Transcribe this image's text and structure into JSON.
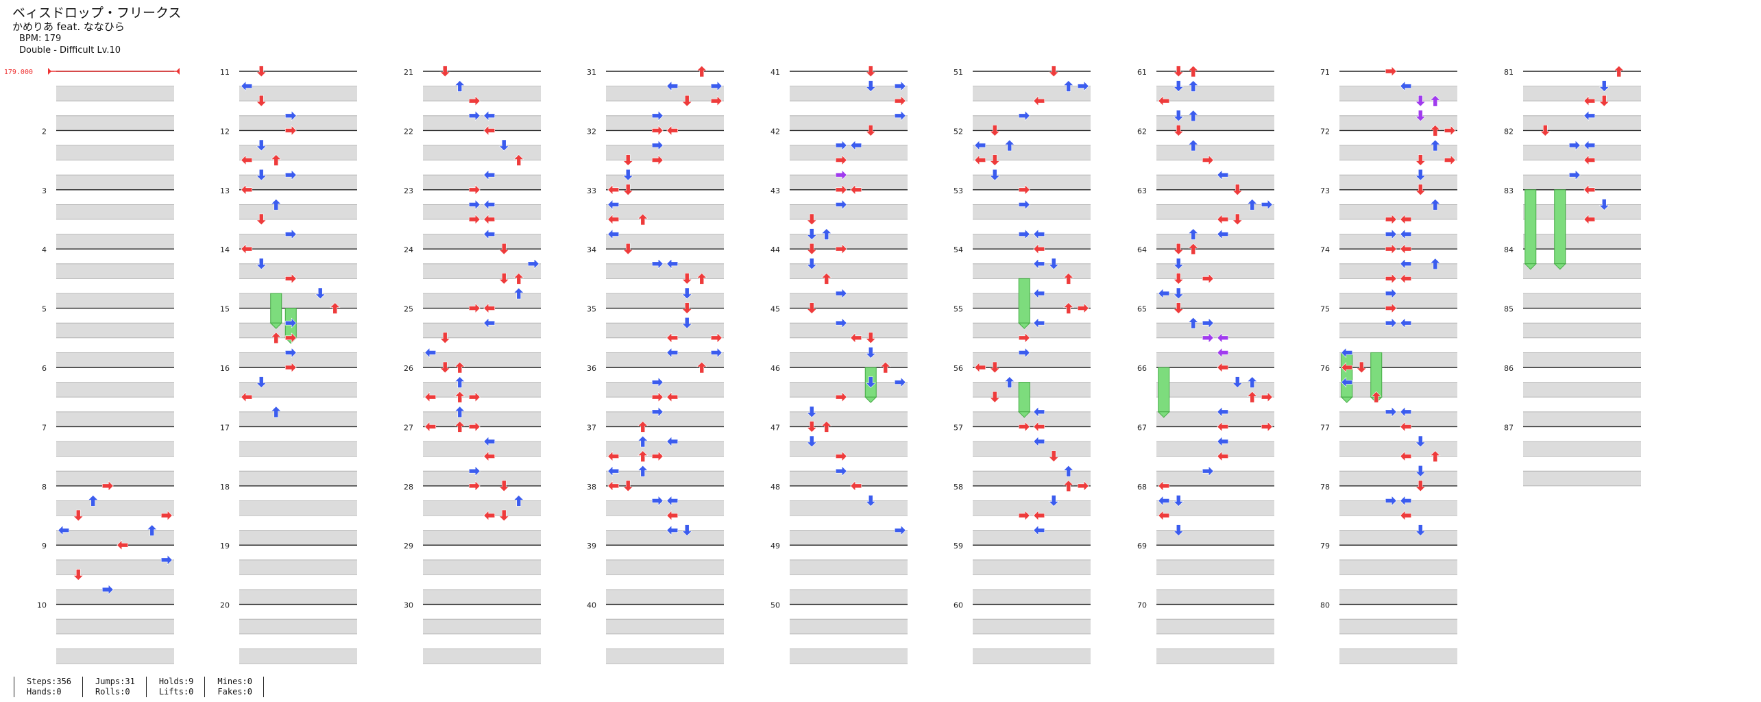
{
  "song": {
    "title": "ベィスドロップ・フリークス",
    "artist": "かめりあ feat. ななひら",
    "bpm_line": "BPM: 179",
    "chart_line": "Double - Difficult  Lv.10"
  },
  "bpm_marker": "179.000",
  "colors": {
    "red": "#ee3b3b",
    "blue": "#3b5cee",
    "purple": "#a03bee",
    "hold": "#7ddc7d",
    "stripe": "#dcdcdc"
  },
  "stats": [
    {
      "a": "Steps:356",
      "b": "Hands:0"
    },
    {
      "a": "Jumps:31",
      "b": "Rolls:0"
    },
    {
      "a": "Holds:9",
      "b": "Lifts:0"
    },
    {
      "a": "Mines:0",
      "b": "Fakes:0"
    }
  ],
  "measure_numbers": [
    "2",
    "3",
    "4",
    "5",
    "6",
    "7",
    "8",
    "9",
    "10",
    "11",
    "12",
    "13",
    "14",
    "15",
    "16",
    "17",
    "18",
    "19",
    "20",
    "21",
    "22",
    "23",
    "24",
    "25",
    "26",
    "27",
    "28",
    "29",
    "30",
    "31",
    "32",
    "33",
    "34",
    "35",
    "36",
    "37",
    "38",
    "39",
    "40",
    "41",
    "42",
    "43",
    "44",
    "45",
    "46",
    "47",
    "48",
    "49",
    "50",
    "51",
    "52",
    "53",
    "54",
    "55",
    "56",
    "57",
    "58",
    "59",
    "60",
    "61",
    "62",
    "63",
    "64",
    "65",
    "66",
    "67",
    "68",
    "69",
    "70",
    "71",
    "72",
    "73",
    "74",
    "75",
    "76",
    "77",
    "78",
    "79",
    "80",
    "81",
    "82",
    "83",
    "84",
    "85",
    "86",
    "87"
  ],
  "chart_data": {
    "type": "table",
    "description_units": "beats (4 per measure), lanes 0-7 (double, L D U R L D U R)",
    "notes": [
      [
        0,
        28,
        3
      ],
      [
        0,
        29,
        2
      ],
      [
        0,
        30,
        1
      ],
      [
        0,
        30,
        7
      ],
      [
        0,
        31,
        6
      ],
      [
        0,
        31,
        0
      ],
      [
        0,
        32,
        4
      ],
      [
        0,
        33,
        7
      ],
      [
        0,
        34,
        1
      ],
      [
        0,
        35,
        3
      ],
      [
        1,
        0,
        1
      ],
      [
        1,
        1,
        0
      ],
      [
        1,
        2,
        1
      ],
      [
        1,
        3,
        3
      ],
      [
        1,
        4,
        3
      ],
      [
        1,
        5,
        1
      ],
      [
        1,
        6,
        0
      ],
      [
        1,
        6,
        2
      ],
      [
        1,
        7,
        1
      ],
      [
        1,
        7,
        3
      ],
      [
        1,
        8,
        0
      ],
      [
        1,
        9,
        2
      ],
      [
        1,
        10,
        1
      ],
      [
        1,
        11,
        3
      ],
      [
        1,
        12,
        0
      ],
      [
        1,
        12,
        0
      ],
      [
        1,
        13,
        1
      ],
      [
        1,
        14,
        3
      ],
      [
        1,
        15,
        5
      ],
      [
        1,
        16,
        6
      ],
      [
        1,
        17,
        3
      ],
      [
        1,
        18,
        2
      ],
      [
        1,
        18,
        3
      ],
      [
        1,
        19,
        3
      ],
      [
        1,
        20,
        3
      ],
      [
        1,
        21,
        1
      ],
      [
        1,
        22,
        0
      ],
      [
        1,
        23,
        2
      ],
      [
        2,
        0,
        1
      ],
      [
        2,
        1,
        2
      ],
      [
        2,
        2,
        3
      ],
      [
        2,
        3,
        3
      ],
      [
        2,
        3,
        4
      ],
      [
        2,
        4,
        4
      ],
      [
        2,
        5,
        5
      ],
      [
        2,
        6,
        6
      ],
      [
        2,
        7,
        4
      ],
      [
        2,
        8,
        3
      ],
      [
        2,
        9,
        3
      ],
      [
        2,
        9,
        4
      ],
      [
        2,
        10,
        3
      ],
      [
        2,
        10,
        4
      ],
      [
        2,
        11,
        4
      ],
      [
        2,
        12,
        5
      ],
      [
        2,
        13,
        7
      ],
      [
        2,
        14,
        6
      ],
      [
        2,
        14,
        5
      ],
      [
        2,
        15,
        6
      ],
      [
        2,
        16,
        3
      ],
      [
        2,
        16,
        4
      ],
      [
        2,
        17,
        4
      ],
      [
        2,
        18,
        1
      ],
      [
        2,
        19,
        0
      ],
      [
        2,
        20,
        1
      ],
      [
        2,
        20,
        2
      ],
      [
        2,
        21,
        2
      ],
      [
        2,
        22,
        0
      ],
      [
        2,
        22,
        2
      ],
      [
        2,
        22,
        3
      ],
      [
        2,
        23,
        2
      ],
      [
        2,
        24,
        0
      ],
      [
        2,
        24,
        2
      ],
      [
        2,
        24,
        3
      ],
      [
        2,
        25,
        4
      ],
      [
        2,
        26,
        4
      ],
      [
        2,
        27,
        3
      ],
      [
        2,
        28,
        3
      ],
      [
        2,
        28,
        5
      ],
      [
        2,
        29,
        6
      ],
      [
        2,
        30,
        4
      ],
      [
        2,
        30,
        5
      ],
      [
        3,
        0,
        6
      ],
      [
        3,
        1,
        4
      ],
      [
        3,
        1,
        7
      ],
      [
        3,
        2,
        5
      ],
      [
        3,
        2,
        7
      ],
      [
        3,
        3,
        3
      ],
      [
        3,
        4,
        3
      ],
      [
        3,
        4,
        4
      ],
      [
        3,
        5,
        3
      ],
      [
        3,
        6,
        3
      ],
      [
        3,
        6,
        1
      ],
      [
        3,
        7,
        1
      ],
      [
        3,
        8,
        0
      ],
      [
        3,
        8,
        1
      ],
      [
        3,
        9,
        0
      ],
      [
        3,
        10,
        0
      ],
      [
        3,
        10,
        2
      ],
      [
        3,
        11,
        0
      ],
      [
        3,
        12,
        1
      ],
      [
        3,
        13,
        3
      ],
      [
        3,
        13,
        4
      ],
      [
        3,
        14,
        5
      ],
      [
        3,
        14,
        6
      ],
      [
        3,
        15,
        5
      ],
      [
        3,
        16,
        5
      ],
      [
        3,
        17,
        5
      ],
      [
        3,
        18,
        4
      ],
      [
        3,
        18,
        7
      ],
      [
        3,
        19,
        4
      ],
      [
        3,
        19,
        7
      ],
      [
        3,
        20,
        6
      ],
      [
        3,
        21,
        3
      ],
      [
        3,
        22,
        3
      ],
      [
        3,
        22,
        4
      ],
      [
        3,
        23,
        3
      ],
      [
        3,
        24,
        2
      ],
      [
        3,
        25,
        2
      ],
      [
        3,
        25,
        4
      ],
      [
        3,
        26,
        0
      ],
      [
        3,
        26,
        2
      ],
      [
        3,
        26,
        3
      ],
      [
        3,
        27,
        0
      ],
      [
        3,
        27,
        2
      ],
      [
        3,
        28,
        0
      ],
      [
        3,
        28,
        1
      ],
      [
        3,
        29,
        3
      ],
      [
        3,
        29,
        4
      ],
      [
        3,
        30,
        4
      ],
      [
        3,
        31,
        4
      ],
      [
        3,
        31,
        5
      ],
      [
        4,
        0,
        5
      ],
      [
        4,
        1,
        5
      ],
      [
        4,
        1,
        7
      ],
      [
        4,
        2,
        7
      ],
      [
        4,
        3,
        7
      ],
      [
        4,
        4,
        5
      ],
      [
        4,
        5,
        3
      ],
      [
        4,
        5,
        4
      ],
      [
        4,
        6,
        3
      ],
      [
        4,
        7,
        3
      ],
      [
        4,
        8,
        3
      ],
      [
        4,
        8,
        4
      ],
      [
        4,
        9,
        3
      ],
      [
        4,
        10,
        1
      ],
      [
        4,
        11,
        1
      ],
      [
        4,
        11,
        2
      ],
      [
        4,
        12,
        1
      ],
      [
        4,
        12,
        3
      ],
      [
        4,
        13,
        1
      ],
      [
        4,
        14,
        2
      ],
      [
        4,
        15,
        3
      ],
      [
        4,
        16,
        1
      ],
      [
        4,
        17,
        3
      ],
      [
        4,
        18,
        4
      ],
      [
        4,
        18,
        5
      ],
      [
        4,
        19,
        5
      ],
      [
        4,
        20,
        6
      ],
      [
        4,
        21,
        7
      ],
      [
        4,
        21,
        5
      ],
      [
        4,
        22,
        3
      ],
      [
        4,
        23,
        1
      ],
      [
        4,
        24,
        1
      ],
      [
        4,
        24,
        2
      ],
      [
        4,
        25,
        1
      ],
      [
        4,
        26,
        3
      ],
      [
        4,
        27,
        3
      ],
      [
        4,
        28,
        4
      ],
      [
        4,
        29,
        5
      ],
      [
        4,
        31,
        7
      ],
      [
        5,
        0,
        5
      ],
      [
        5,
        1,
        7
      ],
      [
        5,
        1,
        6
      ],
      [
        5,
        2,
        4
      ],
      [
        5,
        3,
        3
      ],
      [
        5,
        4,
        1
      ],
      [
        5,
        5,
        0
      ],
      [
        5,
        5,
        2
      ],
      [
        5,
        6,
        0
      ],
      [
        5,
        6,
        1
      ],
      [
        5,
        7,
        1
      ],
      [
        5,
        8,
        3
      ],
      [
        5,
        9,
        3
      ],
      [
        5,
        11,
        4
      ],
      [
        5,
        11,
        3
      ],
      [
        5,
        12,
        4
      ],
      [
        5,
        13,
        4
      ],
      [
        5,
        13,
        5
      ],
      [
        5,
        14,
        6
      ],
      [
        5,
        15,
        4
      ],
      [
        5,
        16,
        6
      ],
      [
        5,
        16,
        7
      ],
      [
        5,
        17,
        4
      ],
      [
        5,
        18,
        3
      ],
      [
        5,
        19,
        3
      ],
      [
        5,
        20,
        0
      ],
      [
        5,
        20,
        1
      ],
      [
        5,
        21,
        2
      ],
      [
        5,
        22,
        1
      ],
      [
        5,
        23,
        4
      ],
      [
        5,
        24,
        3
      ],
      [
        5,
        24,
        4
      ],
      [
        5,
        25,
        4
      ],
      [
        5,
        26,
        5
      ],
      [
        5,
        27,
        6
      ],
      [
        5,
        28,
        6
      ],
      [
        5,
        28,
        7
      ],
      [
        5,
        29,
        5
      ],
      [
        5,
        30,
        3
      ],
      [
        5,
        30,
        4
      ],
      [
        5,
        31,
        4
      ],
      [
        6,
        0,
        1
      ],
      [
        6,
        0,
        2
      ],
      [
        6,
        1,
        1
      ],
      [
        6,
        1,
        2
      ],
      [
        6,
        2,
        0
      ],
      [
        6,
        3,
        1
      ],
      [
        6,
        3,
        2
      ],
      [
        6,
        4,
        1
      ],
      [
        6,
        5,
        2
      ],
      [
        6,
        6,
        3
      ],
      [
        6,
        7,
        4
      ],
      [
        6,
        8,
        5
      ],
      [
        6,
        9,
        6
      ],
      [
        6,
        9,
        7
      ],
      [
        6,
        10,
        4
      ],
      [
        6,
        10,
        5
      ],
      [
        6,
        11,
        4
      ],
      [
        6,
        11,
        2
      ],
      [
        6,
        12,
        1
      ],
      [
        6,
        12,
        2
      ],
      [
        6,
        13,
        1
      ],
      [
        6,
        14,
        1
      ],
      [
        6,
        14,
        3
      ],
      [
        6,
        15,
        0
      ],
      [
        6,
        15,
        1
      ],
      [
        6,
        16,
        1
      ],
      [
        6,
        17,
        2
      ],
      [
        6,
        17,
        3
      ],
      [
        6,
        18,
        3
      ],
      [
        6,
        18,
        4
      ],
      [
        6,
        19,
        4
      ],
      [
        6,
        20,
        4
      ],
      [
        6,
        21,
        6
      ],
      [
        6,
        21,
        5
      ],
      [
        6,
        22,
        6
      ],
      [
        6,
        22,
        7
      ],
      [
        6,
        23,
        4
      ],
      [
        6,
        24,
        4
      ],
      [
        6,
        24,
        7
      ],
      [
        6,
        25,
        4
      ],
      [
        6,
        26,
        4
      ],
      [
        6,
        27,
        3
      ],
      [
        6,
        28,
        0
      ],
      [
        6,
        29,
        0
      ],
      [
        6,
        29,
        1
      ],
      [
        6,
        30,
        0
      ],
      [
        6,
        31,
        1
      ],
      [
        7,
        0,
        3
      ],
      [
        7,
        1,
        4
      ],
      [
        7,
        2,
        5
      ],
      [
        7,
        2,
        6
      ],
      [
        7,
        3,
        5
      ],
      [
        7,
        4,
        6
      ],
      [
        7,
        4,
        7
      ],
      [
        7,
        5,
        6
      ],
      [
        7,
        6,
        5
      ],
      [
        7,
        6,
        7
      ],
      [
        7,
        7,
        5
      ],
      [
        7,
        8,
        5
      ],
      [
        7,
        9,
        6
      ],
      [
        7,
        10,
        3
      ],
      [
        7,
        10,
        4
      ],
      [
        7,
        11,
        3
      ],
      [
        7,
        11,
        4
      ],
      [
        7,
        12,
        3
      ],
      [
        7,
        12,
        4
      ],
      [
        7,
        13,
        4
      ],
      [
        7,
        13,
        6
      ],
      [
        7,
        14,
        3
      ],
      [
        7,
        14,
        4
      ],
      [
        7,
        15,
        3
      ],
      [
        7,
        16,
        3
      ],
      [
        7,
        17,
        3
      ],
      [
        7,
        17,
        4
      ],
      [
        7,
        19,
        0
      ],
      [
        7,
        20,
        0
      ],
      [
        7,
        20,
        1
      ],
      [
        7,
        21,
        0
      ],
      [
        7,
        22,
        2
      ],
      [
        7,
        23,
        3
      ],
      [
        7,
        23,
        4
      ],
      [
        7,
        24,
        4
      ],
      [
        7,
        25,
        5
      ],
      [
        7,
        26,
        4
      ],
      [
        7,
        26,
        6
      ],
      [
        7,
        27,
        5
      ],
      [
        7,
        28,
        5
      ],
      [
        7,
        29,
        3
      ],
      [
        7,
        29,
        4
      ],
      [
        7,
        30,
        4
      ],
      [
        7,
        31,
        5
      ],
      [
        8,
        0,
        6
      ],
      [
        8,
        1,
        5
      ],
      [
        8,
        2,
        4
      ],
      [
        8,
        2,
        5
      ],
      [
        8,
        3,
        4
      ],
      [
        8,
        4,
        1
      ],
      [
        8,
        5,
        3
      ],
      [
        8,
        5,
        4
      ],
      [
        8,
        6,
        4
      ],
      [
        8,
        7,
        3
      ],
      [
        8,
        8,
        4
      ],
      [
        8,
        9,
        5
      ],
      [
        8,
        10,
        4
      ]
    ]
  }
}
